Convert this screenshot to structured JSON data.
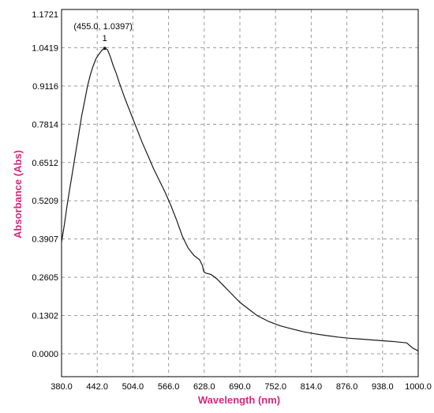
{
  "chart_data": {
    "type": "line",
    "xlabel": "Wavelength (nm)",
    "ylabel": "Absorbance (Abs)",
    "xlim": [
      380.0,
      1000.0
    ],
    "ylim": [
      -0.078,
      1.1721
    ],
    "x_ticks": [
      "380.0",
      "442.0",
      "504.0",
      "566.0",
      "628.0",
      "690.0",
      "752.0",
      "814.0",
      "876.0",
      "938.0",
      "1000.0"
    ],
    "y_ticks": [
      "1.1721",
      "1.0419",
      "0.9116",
      "0.7814",
      "0.6512",
      "0.5209",
      "0.3907",
      "0.2605",
      "0.1302",
      "0.0000"
    ],
    "grid": true,
    "series": [
      {
        "x": [
          380,
          385,
          390,
          395,
          400,
          405,
          410,
          415,
          420,
          425,
          430,
          435,
          440,
          445,
          450,
          455,
          460,
          465,
          470,
          475,
          480,
          490,
          500,
          510,
          520,
          530,
          540,
          550,
          560,
          570,
          580,
          590,
          600,
          610,
          620,
          625,
          627,
          630,
          640,
          650,
          660,
          670,
          680,
          690,
          700,
          710,
          720,
          740,
          760,
          780,
          800,
          820,
          840,
          860,
          880,
          900,
          920,
          940,
          960,
          980,
          990,
          1000
        ],
        "values": [
          0.38,
          0.44,
          0.51,
          0.57,
          0.63,
          0.69,
          0.75,
          0.81,
          0.86,
          0.91,
          0.95,
          0.98,
          1.005,
          1.02,
          1.033,
          1.0397,
          1.035,
          1.01,
          0.98,
          0.955,
          0.925,
          0.87,
          0.82,
          0.77,
          0.72,
          0.675,
          0.63,
          0.59,
          0.55,
          0.505,
          0.455,
          0.4,
          0.36,
          0.335,
          0.32,
          0.3,
          0.28,
          0.275,
          0.27,
          0.255,
          0.235,
          0.215,
          0.195,
          0.175,
          0.16,
          0.145,
          0.13,
          0.11,
          0.095,
          0.085,
          0.075,
          0.068,
          0.062,
          0.057,
          0.053,
          0.05,
          0.047,
          0.044,
          0.041,
          0.037,
          0.02,
          0.01
        ]
      }
    ],
    "annotations": [
      {
        "text": "(455.0, 1.0397)",
        "x": 455.0,
        "y": 1.0397
      },
      {
        "text": "1",
        "x": 455.0,
        "y": 1.0397
      }
    ]
  }
}
